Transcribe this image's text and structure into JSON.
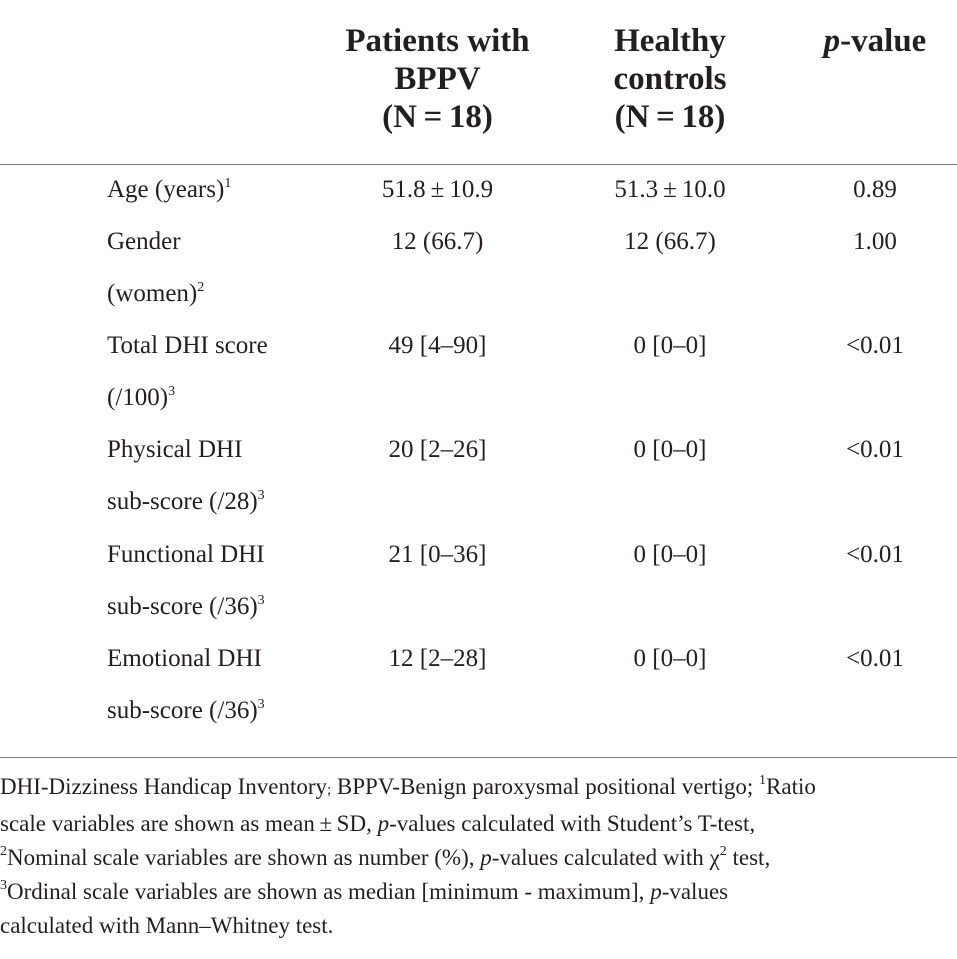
{
  "header": {
    "col1": [
      "Patients with",
      "BPPV",
      "(N = 18)"
    ],
    "col2": [
      "Healthy",
      "controls",
      "(N = 18)"
    ],
    "col3_italic": "p",
    "col3_rest": "-value"
  },
  "rows": [
    {
      "label_l1": "Age (years)",
      "sup_l1": "1",
      "label_l2": "",
      "sup_l2": "",
      "patients": "51.8 ± 10.9",
      "controls": "51.3 ± 10.0",
      "p": "0.89"
    },
    {
      "label_l1": "Gender",
      "sup_l1": "",
      "label_l2": "(women)",
      "sup_l2": "2",
      "patients": "12 (66.7)",
      "controls": "12 (66.7)",
      "p": "1.00"
    },
    {
      "label_l1": "Total DHI score",
      "sup_l1": "",
      "label_l2": "(/100)",
      "sup_l2": "3",
      "patients": "49 [4–90]",
      "controls": "0 [0–0]",
      "p": "<0.01"
    },
    {
      "label_l1": "Physical DHI",
      "sup_l1": "",
      "label_l2": "sub-score (/28)",
      "sup_l2": "3",
      "patients": "20 [2–26]",
      "controls": "0 [0–0]",
      "p": "<0.01"
    },
    {
      "label_l1": "Functional DHI",
      "sup_l1": "",
      "label_l2": "sub-score (/36)",
      "sup_l2": "3",
      "patients": "21 [0–36]",
      "controls": "0 [0–0]",
      "p": "<0.01"
    },
    {
      "label_l1": "Emotional DHI",
      "sup_l1": "",
      "label_l2": "sub-score (/36)",
      "sup_l2": "3",
      "patients": "12 [2–28]",
      "controls": "0 [0–0]",
      "p": "<0.01"
    }
  ],
  "footnote": {
    "l1_a": "DHI-Dizziness Handicap Inventory",
    "l1_b": ";",
    "l1_c": " BPPV-Benign paroxysmal positional vertigo; ",
    "l1_sup": "1",
    "l1_d": "Ratio",
    "l2_a": "scale variables are shown as mean ± SD, ",
    "l2_p": "p",
    "l2_b": "-values calculated with Student’s T-test,",
    "l3_sup": "2",
    "l3_a": "Nominal scale variables are shown as number (%), ",
    "l3_p": "p",
    "l3_b": "-values calculated with χ",
    "l3_sup2": "2",
    "l3_c": " test,",
    "l4_sup": "3",
    "l4_a": "Ordinal scale variables are shown as median [minimum - maximum], ",
    "l4_p": "p",
    "l4_b": "-values",
    "l5": "calculated with Mann–Whitney test."
  }
}
